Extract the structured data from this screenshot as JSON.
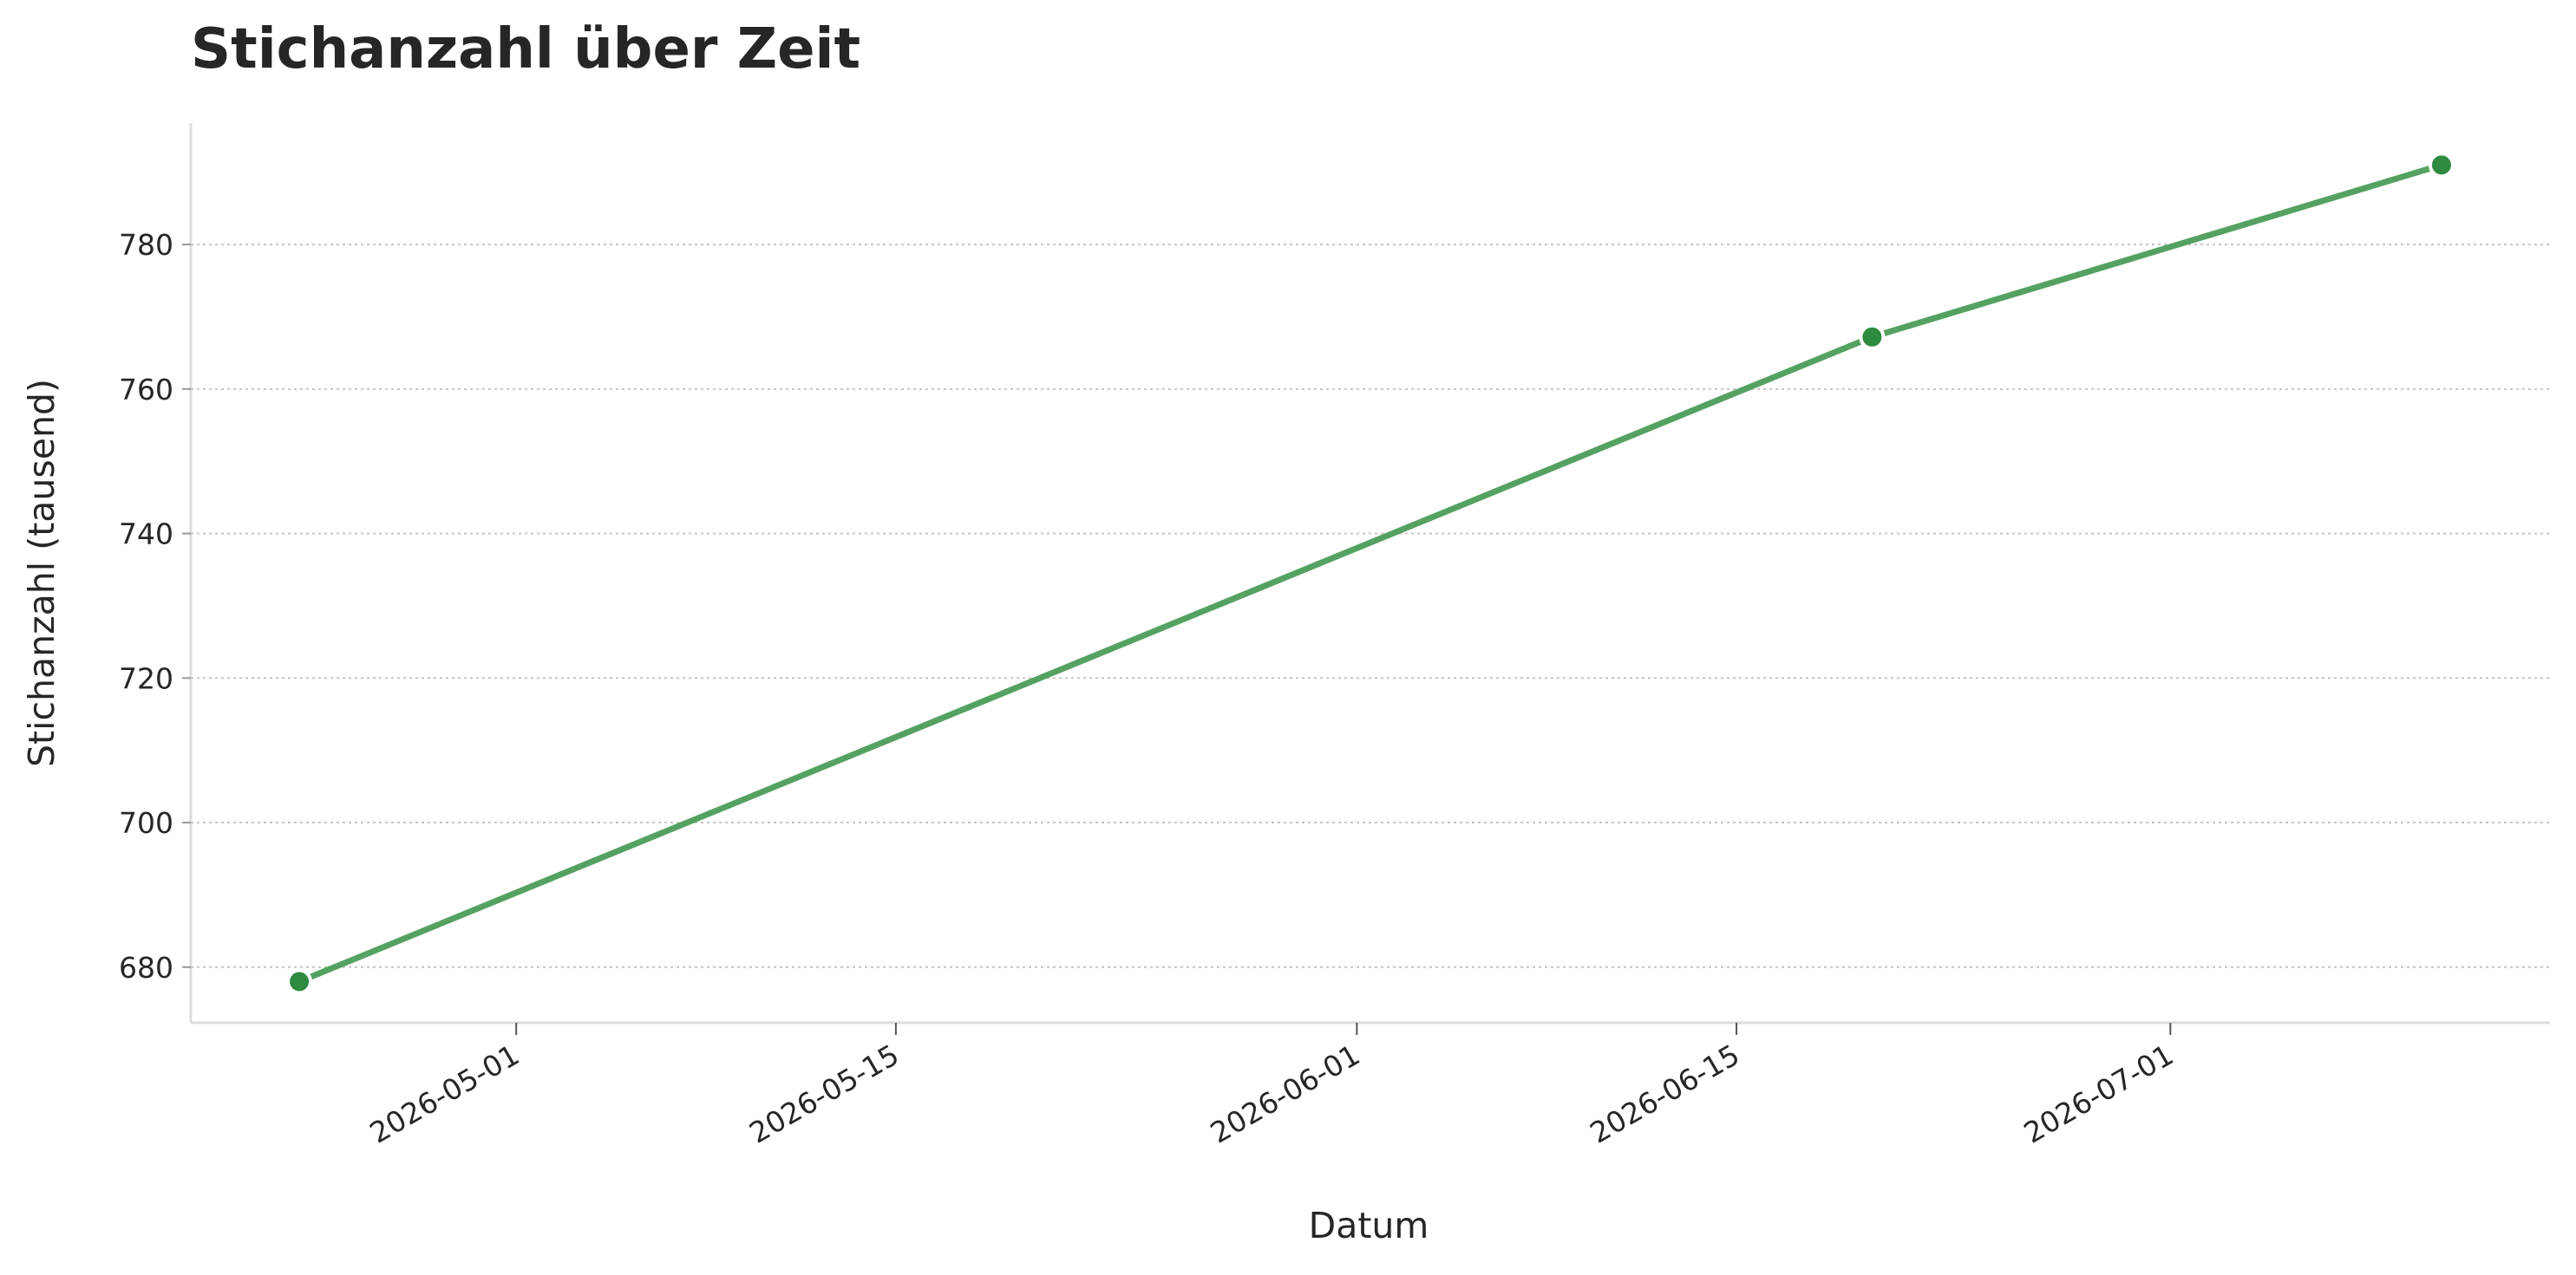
{
  "chart_data": {
    "type": "line",
    "title": "Stichanzahl über Zeit",
    "x_label": "Datum",
    "y_label": "Stichanzahl (tausend)",
    "x": [
      "2026-04-23",
      "2026-06-20",
      "2026-07-11"
    ],
    "series": [
      {
        "name": "Stichanzahl",
        "color": "#55a162",
        "marker_color": "#2d8a3e",
        "values": [
          678,
          767.2,
          791
        ]
      }
    ],
    "xlim": [
      "2026-04-19",
      "2026-07-15"
    ],
    "xticks": [
      "2026-05-01",
      "2026-05-15",
      "2026-06-01",
      "2026-06-15",
      "2026-07-01"
    ],
    "ylim": [
      672.3,
      796.8
    ],
    "yticks": [
      680,
      700,
      720,
      740,
      760,
      780
    ],
    "grid": true
  }
}
